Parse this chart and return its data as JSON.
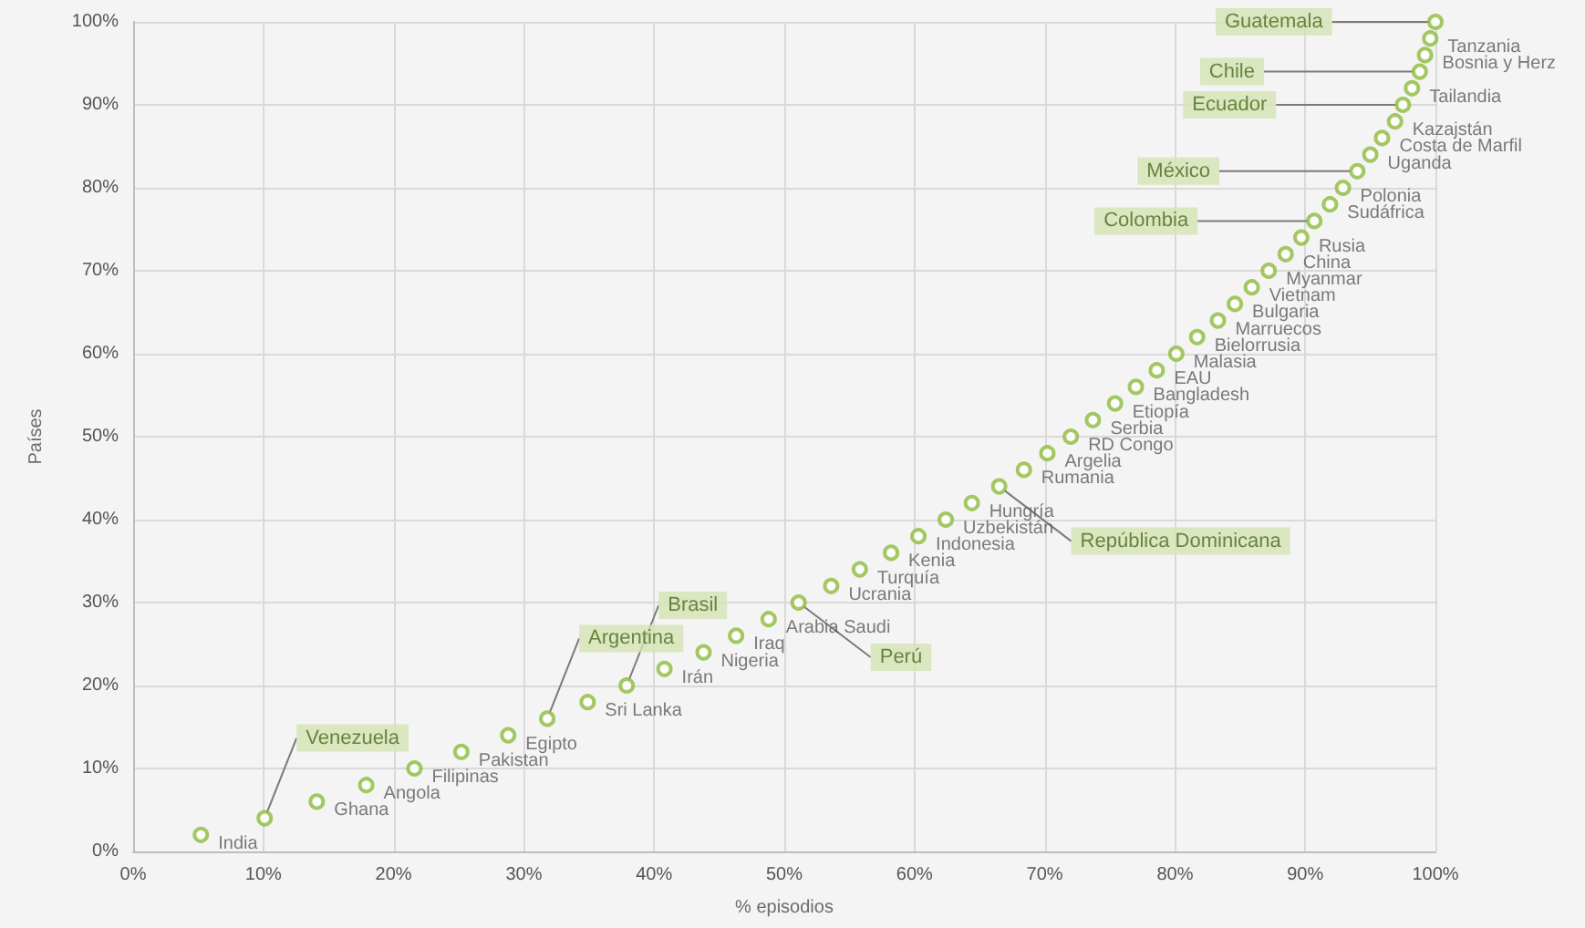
{
  "chart_data": {
    "type": "scatter",
    "xlabel": "% episodios",
    "ylabel": "Países",
    "xlim": [
      0,
      100
    ],
    "ylim": [
      0,
      100
    ],
    "xticks": [
      {
        "value": 0,
        "label": "0%"
      },
      {
        "value": 10,
        "label": "10%"
      },
      {
        "value": 20,
        "label": "20%"
      },
      {
        "value": 30,
        "label": "30%"
      },
      {
        "value": 40,
        "label": "40%"
      },
      {
        "value": 50,
        "label": "50%"
      },
      {
        "value": 60,
        "label": "60%"
      },
      {
        "value": 70,
        "label": "70%"
      },
      {
        "value": 80,
        "label": "80%"
      },
      {
        "value": 90,
        "label": "90%"
      },
      {
        "value": 100,
        "label": "100%"
      }
    ],
    "yticks": [
      {
        "value": 0,
        "label": "0%"
      },
      {
        "value": 10,
        "label": "10%"
      },
      {
        "value": 20,
        "label": "20%"
      },
      {
        "value": 30,
        "label": "30%"
      },
      {
        "value": 40,
        "label": "40%"
      },
      {
        "value": 50,
        "label": "50%"
      },
      {
        "value": 60,
        "label": "60%"
      },
      {
        "value": 70,
        "label": "70%"
      },
      {
        "value": 80,
        "label": "80%"
      },
      {
        "value": 90,
        "label": "90%"
      },
      {
        "value": 100,
        "label": "100%"
      }
    ],
    "grid": true,
    "marker": "circle",
    "series": [
      {
        "color": "#8dbb3c",
        "x": [
          5.2,
          14.1,
          17.9,
          21.6,
          25.2,
          28.8,
          34.9,
          40.8,
          43.8,
          46.3,
          48.8,
          53.6,
          55.8,
          58.2,
          60.3,
          62.4,
          64.4,
          68.4,
          70.2,
          72,
          73.7,
          75.4,
          77,
          78.6,
          80.1,
          81.7,
          83.3,
          84.6,
          85.9,
          87.2,
          88.5,
          89.7,
          91.9,
          92.9,
          95,
          95.9,
          96.9,
          98.2,
          99.2,
          99.6
        ],
        "values": [
          2,
          6,
          8,
          10,
          12,
          14,
          18,
          22,
          24,
          26,
          28,
          32,
          34,
          36,
          38,
          40,
          42,
          46,
          48,
          50,
          52,
          54,
          56,
          58,
          60,
          62,
          64,
          66,
          68,
          70,
          72,
          74,
          78,
          80,
          84,
          86,
          88,
          92,
          96,
          98
        ],
        "value_labels": [
          "India",
          "Ghana",
          "Angola",
          "Filipinas",
          "Pakistan",
          "Egipto",
          "Sri Lanka",
          "Irán",
          "Nigeria",
          "Iraq",
          "Arabia Saudi",
          "Ucrania",
          "Turquía",
          "Kenia",
          "Indonesia",
          "Uzbekistán",
          "Hungría",
          "Rumania",
          "Argelia",
          "RD Congo",
          "Serbia",
          "Etiopía",
          "Bangladesh",
          "EAU",
          "Malasia",
          "Bielorrusia",
          "Marruecos",
          "Bulgaria",
          "Vietnam",
          "Myanmar",
          "China",
          "Rusia",
          "Sudáfrica",
          "Polonia",
          "Uganda",
          "Costa de Marfil",
          "Kazajstán",
          "Tailandia",
          "Bosnia y Herz",
          "Tanzania"
        ]
      },
      {
        "color": "#8dbb3c",
        "x": [
          10.1,
          31.8,
          37.9,
          51.1,
          66.5,
          90.7,
          94,
          97.5,
          98.8,
          100
        ],
        "values": [
          4,
          16,
          20,
          30,
          44,
          76,
          82,
          90,
          94,
          100
        ],
        "value_labels": [
          "Venezuela",
          "Argentina",
          "Brasil",
          "Perú",
          "República Dominicana",
          "Colombia",
          "México",
          "Ecuador",
          "Chile",
          "Guatemala"
        ]
      }
    ]
  }
}
